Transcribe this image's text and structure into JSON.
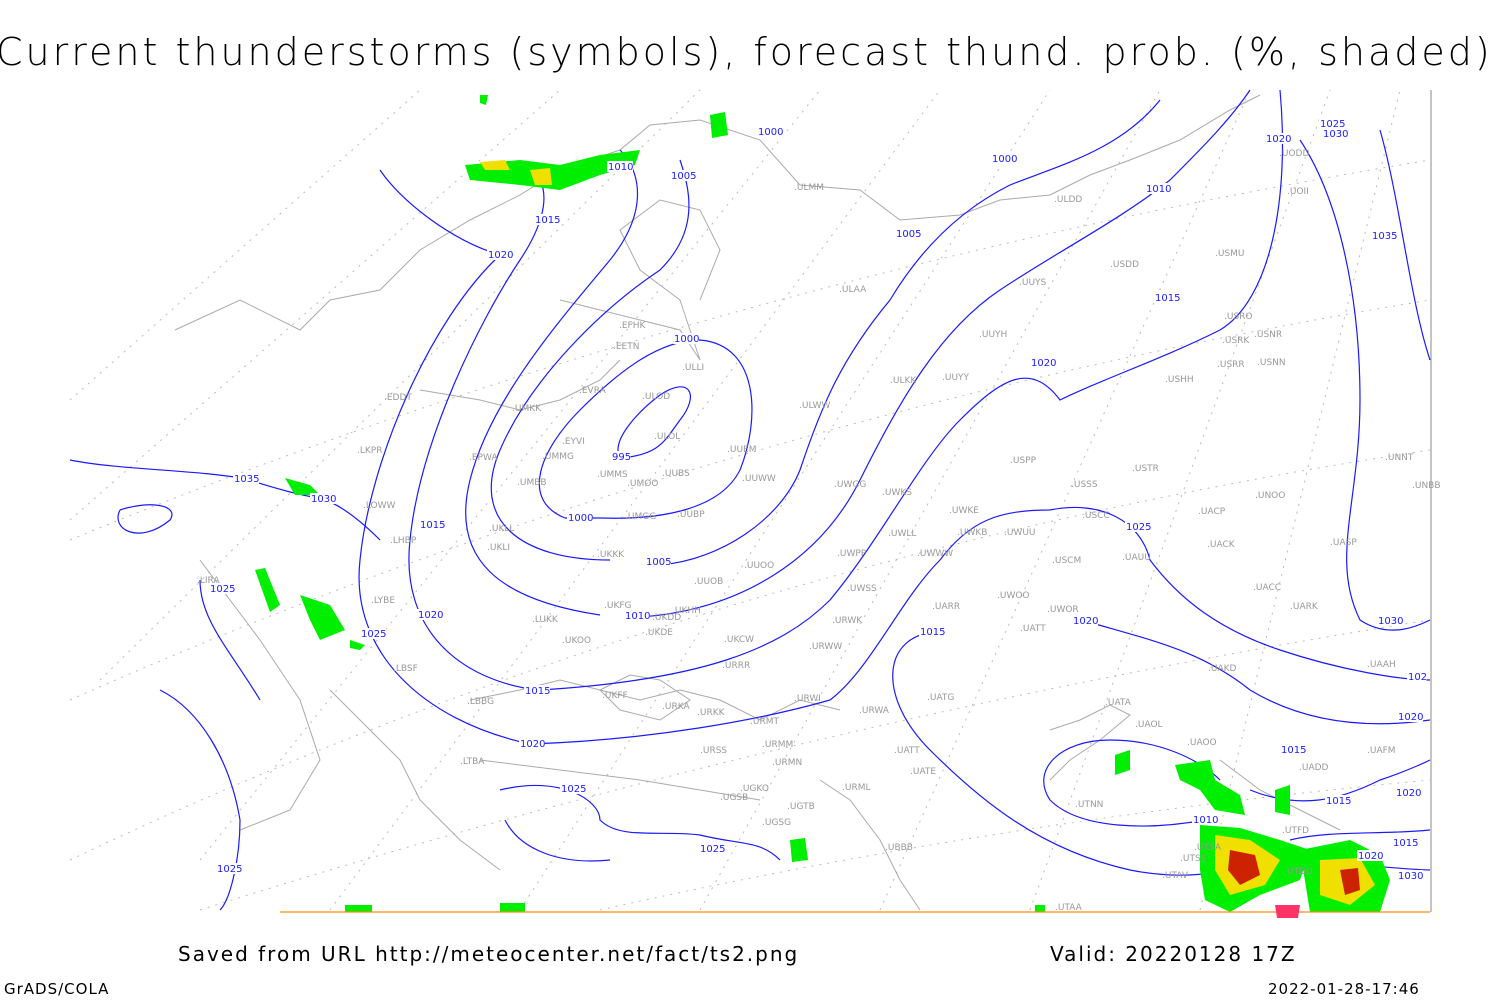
{
  "title": "Current thunderstorms (symbols), forecast thund. prob. (%, shaded)",
  "footer": {
    "source": "Saved from URL http://meteocenter.net/fact/ts2.png",
    "valid": "Valid: 20220128 17Z",
    "software": "GrADS/COLA",
    "timestamp": "2022-01-28-17:46"
  },
  "colors": {
    "isobar": "#1a1aff",
    "coastline": "#aaaaaa",
    "station": "#999999",
    "prob_low": "#00ee00",
    "prob_mid": "#f0e000",
    "prob_high": "#cc2200",
    "thunder_symbol": "#ff3366"
  },
  "stations": [
    "EFHK",
    "EETN",
    "ULLI",
    "EVRA",
    "ULOD",
    "UMKK",
    "EYVI",
    "ULOL",
    "UMMG",
    "UUEM",
    "EPWA",
    "UMMS",
    "UUBS",
    "UMOO",
    "UMBB",
    "UUWW",
    "UMGG",
    "UUBP",
    "UKLL",
    "UKLI",
    "UKKK",
    "UUOO",
    "UUOB",
    "UKHH",
    "UKDD",
    "UKFG",
    "UKOO",
    "UKDE",
    "LUKK",
    "UKCW",
    "URRR",
    "UKFF",
    "URKA",
    "URKK",
    "URWI",
    "URMT",
    "URMM",
    "URMN",
    "URSS",
    "UGKO",
    "UGSB",
    "UGTB",
    "UGSG",
    "UBBB",
    "URML",
    "UATE",
    "UATT",
    "URWA",
    "UATG",
    "UATA",
    "UAOL",
    "UAOO",
    "UADD",
    "UAFM",
    "UTNN",
    "UTSA",
    "UTSS",
    "UTAV",
    "UTAA",
    "UTDD",
    "UTFD",
    "UAKD",
    "UAAH",
    "UARR",
    "UATT",
    "UWOO",
    "UWOR",
    "USCM",
    "UAUU",
    "UACK",
    "UACC",
    "UARK",
    "UASP",
    "UACP",
    "UNOO",
    "UNBB",
    "UNNT",
    "USTR",
    "USSS",
    "USCC",
    "UWKE",
    "UWKB",
    "UWUU",
    "UWLL",
    "UWWW",
    "UWPP",
    "UWGG",
    "UWKS",
    "UWSS",
    "URWW",
    "URWK",
    "USPP",
    "ULKK",
    "UUYY",
    "UUYH",
    "UUYS",
    "ULAA",
    "ULWW",
    "USHH",
    "USRR",
    "USNN",
    "USRK",
    "USNR",
    "USRO",
    "USMU",
    "USDD",
    "ULDD",
    "UODD",
    "UOII",
    "ULMM",
    "EDDT",
    "LKPR",
    "LOWW",
    "LHBP",
    "LIRA",
    "LYBE",
    "LBSF",
    "LBBG",
    "LTBA"
  ],
  "isobar_labels": [
    "1000",
    "1010",
    "1005",
    "1000",
    "1010",
    "1020",
    "1025",
    "1030",
    "1035",
    "1015",
    "1020",
    "1005",
    "1015",
    "1000",
    "995",
    "1000",
    "1005",
    "1010",
    "1015",
    "1020",
    "1025",
    "1025",
    "1025",
    "1035",
    "1030",
    "1015",
    "1020",
    "1025",
    "1025",
    "1020",
    "1025",
    "1020",
    "1030",
    "1015",
    "1015",
    "1020",
    "1010",
    "1015",
    "1020",
    "1020",
    "1015",
    "1030",
    "102"
  ]
}
